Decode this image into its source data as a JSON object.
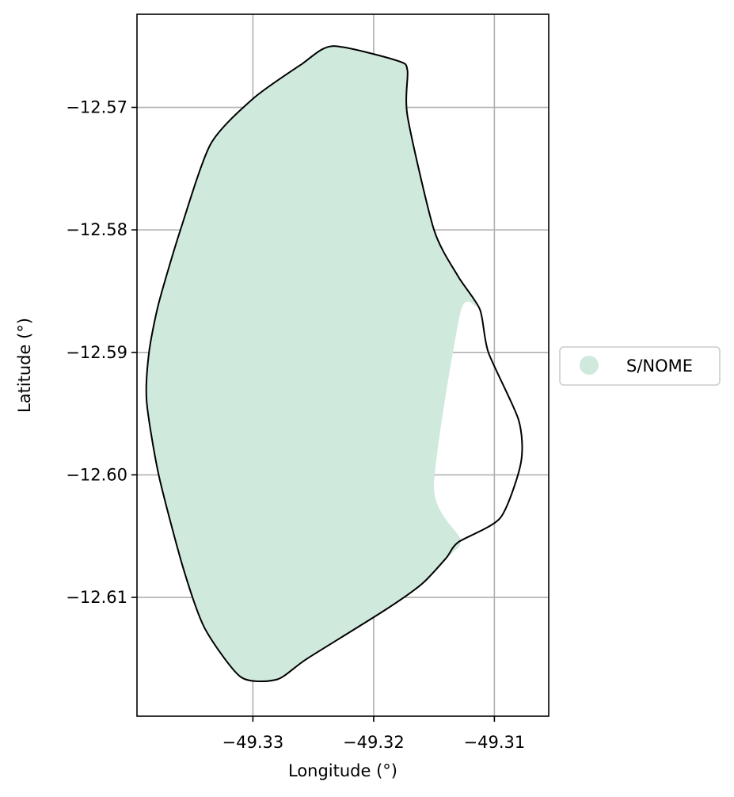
{
  "chart_data": {
    "type": "map",
    "xlabel": "Longitude (°)",
    "ylabel": "Latitude (°)",
    "xlim": [
      -49.3396,
      -49.3055
    ],
    "ylim": [
      -12.6197,
      -12.5624
    ],
    "grid": true,
    "x_ticks": [
      {
        "value": -49.33,
        "label": "−49.33"
      },
      {
        "value": -49.32,
        "label": "−49.32"
      },
      {
        "value": -49.31,
        "label": "−49.31"
      }
    ],
    "y_ticks": [
      {
        "value": -12.57,
        "label": "−12.57"
      },
      {
        "value": -12.58,
        "label": "−12.58"
      },
      {
        "value": -12.59,
        "label": "−12.59"
      },
      {
        "value": -12.6,
        "label": "−12.60"
      },
      {
        "value": -12.61,
        "label": "−12.61"
      }
    ],
    "legend": {
      "placement": "right",
      "entries": [
        {
          "label": "S/NOME",
          "color": "#cfeadd"
        }
      ]
    },
    "polygon_fill": {
      "label": "S/NOME",
      "color": "#cfeadd",
      "coords": [
        [
          -49.3234,
          -12.565
        ],
        [
          -49.318,
          -12.5662
        ],
        [
          -49.3172,
          -12.567
        ],
        [
          -49.3172,
          -12.5707
        ],
        [
          -49.315,
          -12.58
        ],
        [
          -49.313,
          -12.5838
        ],
        [
          -49.3115,
          -12.5862
        ],
        [
          -49.3128,
          -12.5867
        ],
        [
          -49.315,
          -12.601
        ],
        [
          -49.3128,
          -12.6053
        ],
        [
          -49.314,
          -12.6068
        ],
        [
          -49.316,
          -12.6089
        ],
        [
          -49.319,
          -12.611
        ],
        [
          -49.3255,
          -12.615
        ],
        [
          -49.328,
          -12.6167
        ],
        [
          -49.331,
          -12.6165
        ],
        [
          -49.334,
          -12.6125
        ],
        [
          -49.3358,
          -12.6075
        ],
        [
          -49.3378,
          -12.6
        ],
        [
          -49.3388,
          -12.594
        ],
        [
          -49.3386,
          -12.59
        ],
        [
          -49.3378,
          -12.586
        ],
        [
          -49.336,
          -12.58
        ],
        [
          -49.3335,
          -12.573
        ],
        [
          -49.33,
          -12.5693
        ],
        [
          -49.326,
          -12.5665
        ]
      ]
    },
    "polygon_outline": {
      "color": "#000000",
      "coords": [
        [
          -49.3234,
          -12.565
        ],
        [
          -49.318,
          -12.5662
        ],
        [
          -49.3172,
          -12.567
        ],
        [
          -49.3172,
          -12.5707
        ],
        [
          -49.315,
          -12.58
        ],
        [
          -49.313,
          -12.5838
        ],
        [
          -49.3112,
          -12.5865
        ],
        [
          -49.3105,
          -12.59
        ],
        [
          -49.308,
          -12.5955
        ],
        [
          -49.3078,
          -12.599
        ],
        [
          -49.3095,
          -12.6035
        ],
        [
          -49.313,
          -12.6055
        ],
        [
          -49.314,
          -12.6068
        ],
        [
          -49.316,
          -12.6089
        ],
        [
          -49.319,
          -12.611
        ],
        [
          -49.3255,
          -12.615
        ],
        [
          -49.328,
          -12.6167
        ],
        [
          -49.331,
          -12.6165
        ],
        [
          -49.334,
          -12.6125
        ],
        [
          -49.3358,
          -12.6075
        ],
        [
          -49.3378,
          -12.6
        ],
        [
          -49.3388,
          -12.594
        ],
        [
          -49.3386,
          -12.59
        ],
        [
          -49.3378,
          -12.586
        ],
        [
          -49.336,
          -12.58
        ],
        [
          -49.3335,
          -12.573
        ],
        [
          -49.33,
          -12.5693
        ],
        [
          -49.326,
          -12.5665
        ]
      ]
    }
  }
}
